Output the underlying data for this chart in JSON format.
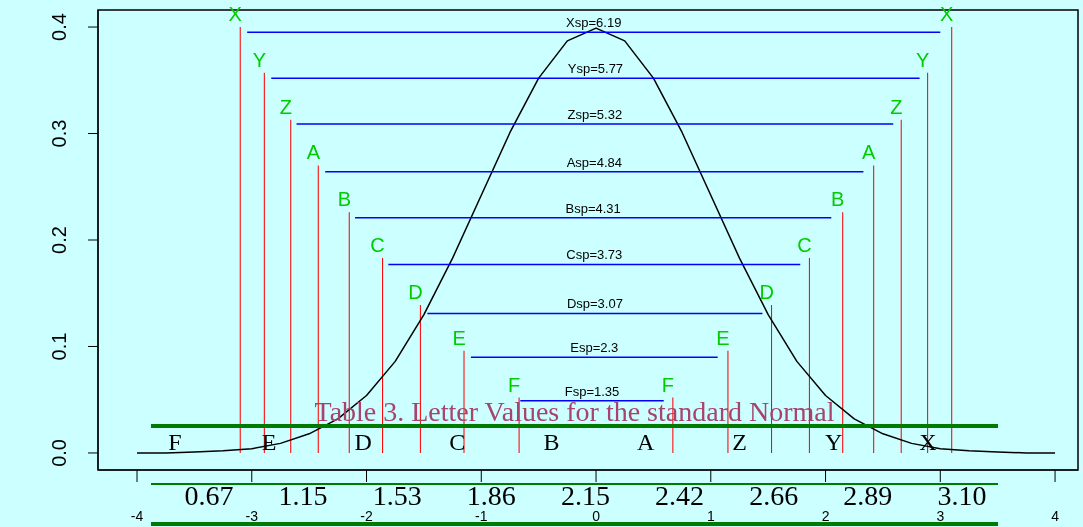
{
  "chart_data": [
    {
      "type": "line",
      "xlim": [
        -4.34,
        4.2
      ],
      "ylim": [
        -0.016,
        0.416
      ],
      "xticks": [
        -4,
        -3,
        -2,
        -1,
        0,
        1,
        2,
        3,
        4
      ],
      "yticks": [
        {
          "value": 0,
          "label": "0.0"
        },
        0.1,
        0.2,
        0.3,
        0.4
      ],
      "grid": false,
      "marker": "none",
      "series": [
        {
          "type": "bar",
          "color": "#ff0000",
          "x": [
            -3.1,
            -2.89,
            -2.66,
            -2.42,
            -2.15,
            -1.86,
            -1.53,
            -1.15,
            -0.67,
            0.67,
            1.15,
            1.53,
            1.86,
            2.15,
            2.42,
            2.66,
            2.89,
            3.1
          ],
          "values": [
            0.4,
            0.357,
            0.313,
            0.27,
            0.226,
            0.183,
            0.139,
            0.096,
            0.052,
            0.052,
            0.096,
            0.139,
            0.183,
            0.226,
            0.27,
            0.313,
            0.357,
            0.4
          ]
        },
        {
          "type": "line",
          "color": "#000000",
          "x": [
            -4,
            -3.75,
            -3.5,
            -3.25,
            -3,
            -2.75,
            -2.5,
            -2.25,
            -2,
            -1.75,
            -1.5,
            -1.25,
            -1,
            -0.75,
            -0.5,
            -0.25,
            0,
            0.25,
            0.5,
            0.75,
            1,
            1.25,
            1.5,
            1.75,
            2,
            2.25,
            2.5,
            2.75,
            3,
            3.25,
            3.5,
            3.75,
            4
          ],
          "values": [
            0,
            0,
            0.001,
            0.002,
            0.004,
            0.009,
            0.018,
            0.032,
            0.054,
            0.086,
            0.13,
            0.183,
            0.242,
            0.301,
            0.352,
            0.387,
            0.399,
            0.387,
            0.352,
            0.301,
            0.242,
            0.183,
            0.13,
            0.086,
            0.054,
            0.032,
            0.018,
            0.009,
            0.004,
            0.002,
            0.001,
            0,
            0
          ]
        },
        {
          "type": "line",
          "name": "Xsp=6.19",
          "color": "#0000ff",
          "x": [
            -3.04,
            3.0
          ],
          "values": [
            0.395,
            0.395
          ]
        },
        {
          "type": "line",
          "name": "Ysp=5.77",
          "color": "#0000ff",
          "x": [
            -2.83,
            2.82
          ],
          "values": [
            0.352,
            0.352
          ]
        },
        {
          "type": "line",
          "name": "Zsp=5.32",
          "color": "#0000ff",
          "x": [
            -2.61,
            2.59
          ],
          "values": [
            0.309,
            0.309
          ]
        },
        {
          "type": "line",
          "name": "Asp=4.84",
          "color": "#0000ff",
          "x": [
            -2.36,
            2.33
          ],
          "values": [
            0.264,
            0.264
          ]
        },
        {
          "type": "line",
          "name": "Bsp=4.31",
          "color": "#0000ff",
          "x": [
            -2.1,
            2.05
          ],
          "values": [
            0.221,
            0.221
          ]
        },
        {
          "type": "line",
          "name": "Csp=3.73",
          "color": "#0000ff",
          "x": [
            -1.81,
            1.78
          ],
          "values": [
            0.177,
            0.177
          ]
        },
        {
          "type": "line",
          "name": "Dsp=3.07",
          "color": "#0000ff",
          "x": [
            -1.47,
            1.45
          ],
          "values": [
            0.131,
            0.131
          ]
        },
        {
          "type": "line",
          "name": "Esp=2.3",
          "color": "#0000ff",
          "x": [
            -1.09,
            1.06
          ],
          "values": [
            0.09,
            0.09
          ]
        },
        {
          "type": "line",
          "name": "Fsp=1.35",
          "color": "#0000ff",
          "x": [
            -0.66,
            0.59
          ],
          "values": [
            0.049,
            0.049
          ]
        }
      ],
      "annotations": [
        {
          "text": "X",
          "x": -3.1,
          "y": 0.4
        },
        {
          "text": "Y",
          "x": -2.89,
          "y": 0.357
        },
        {
          "text": "Z",
          "x": -2.66,
          "y": 0.313
        },
        {
          "text": "A",
          "x": -2.42,
          "y": 0.27
        },
        {
          "text": "B",
          "x": -2.15,
          "y": 0.226
        },
        {
          "text": "C",
          "x": -1.86,
          "y": 0.183
        },
        {
          "text": "D",
          "x": -1.53,
          "y": 0.139
        },
        {
          "text": "E",
          "x": -1.15,
          "y": 0.096
        },
        {
          "text": "F",
          "x": -0.67,
          "y": 0.052
        },
        {
          "text": "F",
          "x": 0.67,
          "y": 0.052
        },
        {
          "text": "E",
          "x": 1.15,
          "y": 0.096
        },
        {
          "text": "D",
          "x": 1.53,
          "y": 0.139
        },
        {
          "text": "C",
          "x": 1.86,
          "y": 0.183
        },
        {
          "text": "B",
          "x": 2.15,
          "y": 0.226
        },
        {
          "text": "A",
          "x": 2.42,
          "y": 0.27
        },
        {
          "text": "Z",
          "x": 2.66,
          "y": 0.313
        },
        {
          "text": "Y",
          "x": 2.89,
          "y": 0.357
        },
        {
          "text": "X",
          "x": 3.1,
          "y": 0.4
        }
      ]
    },
    {
      "type": "other",
      "title": "Table 3. Letter Values for the standard Normal",
      "categories": [
        "F",
        "E",
        "D",
        "C",
        "B",
        "A",
        "Z",
        "Y",
        "X"
      ],
      "values": [
        0.67,
        1.15,
        1.53,
        1.86,
        2.15,
        2.42,
        2.66,
        2.89,
        3.1
      ],
      "value_labels": [
        "0.67",
        "1.15",
        "1.53",
        "1.86",
        "2.15",
        "2.42",
        "2.66",
        "2.89",
        "3.10"
      ]
    }
  ]
}
